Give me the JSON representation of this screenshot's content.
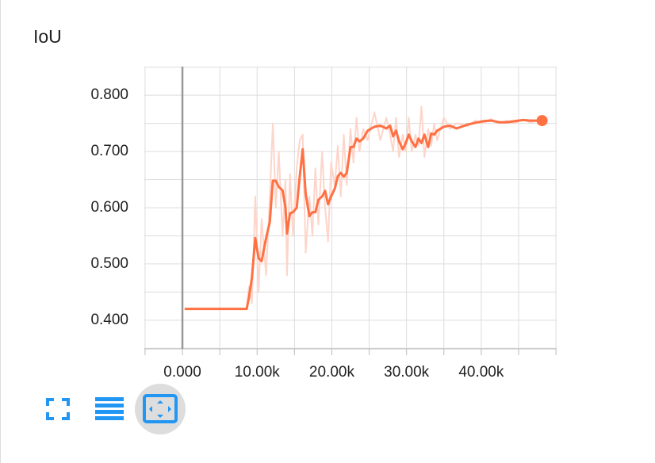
{
  "chart_data": {
    "type": "line",
    "title": "IoU",
    "x": [
      300,
      8600,
      8900,
      9300,
      9750,
      10200,
      10600,
      11200,
      11700,
      12100,
      12500,
      12900,
      13400,
      13800,
      14000,
      14400,
      14800,
      15300,
      15700,
      16100,
      16500,
      17000,
      17400,
      17800,
      18200,
      18700,
      19100,
      19500,
      19900,
      20400,
      20800,
      21200,
      21600,
      22000,
      22500,
      22900,
      23300,
      23700,
      24200,
      24800,
      25700,
      26500,
      27300,
      27800,
      28200,
      28600,
      29000,
      29500,
      29900,
      30300,
      30700,
      31200,
      31600,
      32000,
      32400,
      32900,
      33300,
      33700,
      34100,
      35000,
      35800,
      36700,
      38200,
      39200,
      40300,
      41300,
      42400,
      43400,
      44500,
      45600,
      46500,
      48150
    ],
    "series": [
      {
        "color": "#fdd5ca",
        "values": [
          0.42,
          0.42,
          0.46,
          0.43,
          0.62,
          0.45,
          0.58,
          0.48,
          0.62,
          0.75,
          0.6,
          0.7,
          0.55,
          0.65,
          0.48,
          0.66,
          0.55,
          0.67,
          0.72,
          0.73,
          0.52,
          0.62,
          0.55,
          0.67,
          0.57,
          0.7,
          0.6,
          0.54,
          0.68,
          0.64,
          0.71,
          0.62,
          0.73,
          0.64,
          0.74,
          0.68,
          0.76,
          0.7,
          0.74,
          0.72,
          0.77,
          0.72,
          0.76,
          0.73,
          0.7,
          0.76,
          0.69,
          0.73,
          0.7,
          0.76,
          0.7,
          0.73,
          0.71,
          0.78,
          0.69,
          0.74,
          0.71,
          0.75,
          0.72,
          0.76,
          0.74,
          0.75,
          0.745,
          0.755,
          0.75,
          0.758,
          0.75,
          0.755,
          0.75,
          0.757,
          0.752,
          0.755
        ]
      },
      {
        "color": "#ff7043",
        "values": [
          0.42,
          0.42,
          0.44,
          0.475,
          0.546,
          0.51,
          0.505,
          0.546,
          0.575,
          0.648,
          0.648,
          0.637,
          0.631,
          0.6,
          0.554,
          0.59,
          0.592,
          0.6,
          0.655,
          0.704,
          0.625,
          0.585,
          0.592,
          0.592,
          0.614,
          0.62,
          0.63,
          0.606,
          0.62,
          0.634,
          0.656,
          0.662,
          0.655,
          0.662,
          0.708,
          0.708,
          0.723,
          0.718,
          0.723,
          0.737,
          0.744,
          0.746,
          0.741,
          0.746,
          0.727,
          0.737,
          0.718,
          0.704,
          0.715,
          0.73,
          0.718,
          0.708,
          0.723,
          0.715,
          0.73,
          0.708,
          0.732,
          0.73,
          0.737,
          0.744,
          0.746,
          0.741,
          0.748,
          0.751,
          0.754,
          0.755,
          0.752,
          0.752,
          0.754,
          0.756,
          0.755,
          0.755
        ]
      }
    ],
    "xlim": [
      -5100,
      50100
    ],
    "xticks": [
      {
        "value": 0,
        "label": "0.000"
      },
      {
        "value": 10000,
        "label": "10.00k"
      },
      {
        "value": 20000,
        "label": "20.00k"
      },
      {
        "value": 30000,
        "label": "30.00k"
      },
      {
        "value": 40000,
        "label": "40.00k"
      }
    ],
    "xgrid": [
      -5000,
      0,
      5000,
      10000,
      15000,
      20000,
      25000,
      30000,
      35000,
      40000,
      45000,
      50000
    ],
    "ylim": [
      0.349,
      0.851
    ],
    "yticks": [
      {
        "value": 0.4,
        "label": "0.400"
      },
      {
        "value": 0.5,
        "label": "0.500"
      },
      {
        "value": 0.6,
        "label": "0.600"
      },
      {
        "value": 0.7,
        "label": "0.700"
      },
      {
        "value": 0.8,
        "label": "0.800"
      }
    ],
    "ygrid": [
      0.35,
      0.4,
      0.45,
      0.5,
      0.55,
      0.6,
      0.65,
      0.7,
      0.75,
      0.8,
      0.85
    ],
    "grid": true
  }
}
